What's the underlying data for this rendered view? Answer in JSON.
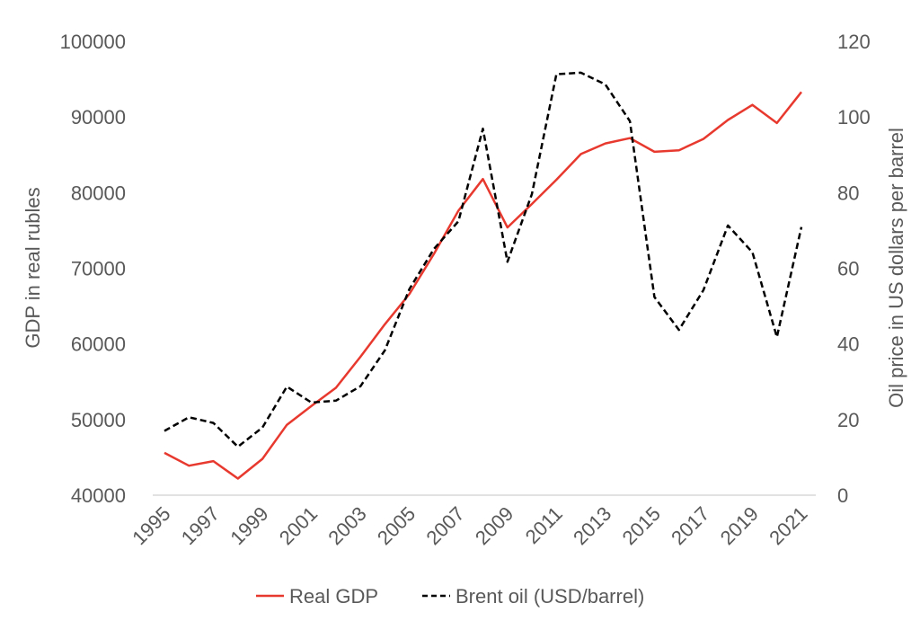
{
  "chart_data": {
    "type": "line",
    "x": [
      1995,
      1996,
      1997,
      1998,
      1999,
      2000,
      2001,
      2002,
      2003,
      2004,
      2005,
      2006,
      2007,
      2008,
      2009,
      2010,
      2011,
      2012,
      2013,
      2014,
      2015,
      2016,
      2017,
      2018,
      2019,
      2020,
      2021
    ],
    "x_tick_labels": [
      "1995",
      "1997",
      "1999",
      "2001",
      "2003",
      "2005",
      "2007",
      "2009",
      "2011",
      "2013",
      "2015",
      "2017",
      "2019",
      "2021"
    ],
    "y_left": {
      "label": "GDP in real rubles",
      "lim": [
        40000,
        100000
      ],
      "ticks": [
        "40000",
        "50000",
        "60000",
        "70000",
        "80000",
        "90000",
        "100000"
      ]
    },
    "y_right": {
      "label": "Oil price in US dollars per barrel",
      "lim": [
        0,
        120
      ],
      "ticks": [
        "0",
        "20",
        "40",
        "60",
        "80",
        "100",
        "120"
      ]
    },
    "series": [
      {
        "name": "Real GDP",
        "axis": "left",
        "color": "#e8392f",
        "style": "solid",
        "values": [
          45600,
          43900,
          44500,
          42200,
          44800,
          49300,
          51800,
          54200,
          58300,
          62600,
          66600,
          71900,
          77600,
          81800,
          75400,
          78500,
          81700,
          85100,
          86500,
          87200,
          85400,
          85600,
          87100,
          89600,
          91600,
          89200,
          93300
        ]
      },
      {
        "name": "Brent oil (USD/barrel)",
        "axis": "right",
        "color": "#000000",
        "style": "dashed",
        "values": [
          17,
          20.6,
          19.1,
          12.8,
          17.9,
          28.7,
          24.5,
          25,
          28.8,
          38.3,
          54.5,
          65.1,
          72.4,
          96.9,
          61.7,
          79.6,
          111.3,
          111.7,
          108.6,
          98.9,
          52.4,
          43.7,
          54.2,
          71.3,
          64.2,
          41.8,
          70.9
        ]
      }
    ],
    "legend_position": "bottom",
    "grid": false
  }
}
